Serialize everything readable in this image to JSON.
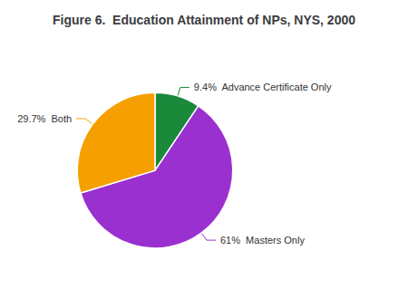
{
  "chart_data": {
    "type": "pie",
    "title": "Figure 6.  Education Attainment of NPs, NYS, 2000",
    "categories": [
      "9.4%  Advance Certificate Only",
      "61%  Masters Only",
      "29.7%  Both"
    ],
    "values": [
      9.4,
      61.0,
      29.7
    ],
    "colors": [
      "#1a8a3a",
      "#9b30d0",
      "#f5a000"
    ]
  }
}
